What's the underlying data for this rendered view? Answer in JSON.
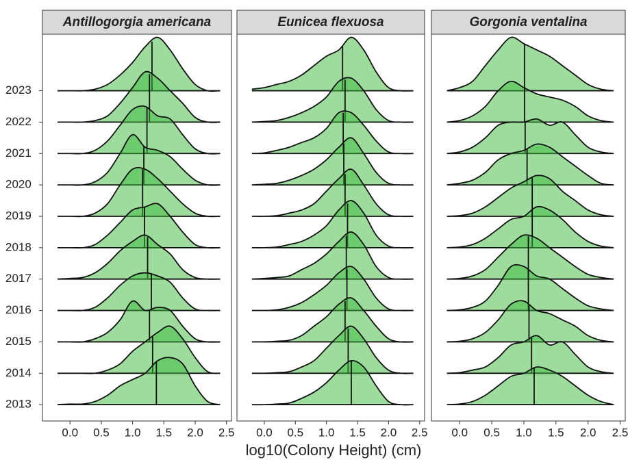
{
  "chart_data": {
    "type": "ridgeline",
    "x_label": "log10(Colony Height) (cm)",
    "categories": [
      "2013",
      "2014",
      "2015",
      "2016",
      "2017",
      "2018",
      "2019",
      "2020",
      "2021",
      "2022",
      "2023"
    ],
    "x": [
      -0.2,
      0,
      0.2,
      0.4,
      0.6,
      0.8,
      1.0,
      1.2,
      1.4,
      1.6,
      1.8,
      2.0,
      2.2,
      2.4
    ],
    "xlim": [
      -0.44,
      2.58
    ],
    "ylim": [
      -0.52,
      11.8
    ],
    "xticks": [
      {
        "value": 0,
        "label": "0.0"
      },
      0.5,
      {
        "value": 1,
        "label": "1.0"
      },
      1.5,
      {
        "value": 2,
        "label": "2.0"
      },
      2.5
    ],
    "fill": "#3cb93c",
    "facets": [
      {
        "title": "Antillogorgia americana",
        "medians": [
          1.38,
          1.32,
          1.27,
          1.3,
          1.24,
          1.19,
          1.16,
          1.18,
          1.23,
          1.27,
          1.31
        ],
        "ridges": [
          [
            0,
            0.02,
            0.02,
            0.1,
            0.3,
            0.6,
            0.8,
            1.0,
            1.4,
            1.5,
            1.3,
            0.6,
            0.1,
            0
          ],
          [
            0,
            0,
            0,
            0,
            0.1,
            0.3,
            0.7,
            1.0,
            1.3,
            1.5,
            1.1,
            0.5,
            0.05,
            0
          ],
          [
            0,
            0,
            0,
            0.1,
            0.3,
            0.7,
            1.3,
            1.0,
            1.1,
            1.0,
            0.5,
            0.1,
            0,
            0
          ],
          [
            0,
            0,
            0,
            0.1,
            0.4,
            0.8,
            1.1,
            1.2,
            1.1,
            0.9,
            0.4,
            0.05,
            0,
            0
          ],
          [
            0,
            0.02,
            0.05,
            0.2,
            0.5,
            0.9,
            1.2,
            1.4,
            1.1,
            0.8,
            0.3,
            0.05,
            0,
            0
          ],
          [
            0,
            0,
            0,
            0.1,
            0.4,
            0.8,
            1.2,
            1.3,
            1.4,
            1.0,
            0.5,
            0.1,
            0,
            0
          ],
          [
            0,
            0,
            0,
            0.1,
            0.4,
            1.0,
            1.5,
            1.5,
            1.2,
            0.8,
            0.4,
            0.1,
            0,
            0
          ],
          [
            0,
            0,
            0,
            0.1,
            0.4,
            1.0,
            1.6,
            1.2,
            1.1,
            0.9,
            0.5,
            0.15,
            0,
            0
          ],
          [
            0,
            0,
            0,
            0.1,
            0.4,
            0.9,
            1.4,
            1.5,
            1.2,
            1.1,
            0.6,
            0.15,
            0,
            0
          ],
          [
            0,
            0,
            0,
            0.05,
            0.2,
            0.6,
            1.1,
            1.6,
            1.4,
            1.0,
            0.6,
            0.15,
            0,
            0
          ],
          [
            0,
            0,
            0,
            0.05,
            0.2,
            0.5,
            0.9,
            1.4,
            1.7,
            1.3,
            0.7,
            0.2,
            0,
            0
          ]
        ]
      },
      {
        "title": "Eunicea flexuosa",
        "medians": [
          1.4,
          1.35,
          1.3,
          1.33,
          1.32,
          1.34,
          1.3,
          1.28,
          1.27,
          1.3,
          1.26
        ],
        "ridges": [
          [
            0,
            0,
            0.02,
            0.05,
            0.2,
            0.4,
            0.7,
            1.1,
            1.4,
            1.2,
            0.6,
            0.1,
            0,
            0
          ],
          [
            0,
            0,
            0.02,
            0.05,
            0.2,
            0.4,
            0.8,
            1.2,
            1.5,
            1.1,
            0.5,
            0.1,
            0,
            0
          ],
          [
            0,
            0,
            0.02,
            0.05,
            0.2,
            0.5,
            0.8,
            1.2,
            1.4,
            1.0,
            0.5,
            0.1,
            0,
            0
          ],
          [
            0,
            0,
            0.02,
            0.1,
            0.25,
            0.5,
            0.8,
            1.2,
            1.4,
            1.0,
            0.4,
            0.05,
            0,
            0
          ],
          [
            0,
            0.02,
            0.05,
            0.1,
            0.3,
            0.5,
            0.8,
            1.2,
            1.5,
            1.1,
            0.4,
            0.05,
            0,
            0
          ],
          [
            0,
            0,
            0.02,
            0.1,
            0.2,
            0.4,
            0.7,
            1.2,
            1.5,
            1.1,
            0.4,
            0.05,
            0,
            0
          ],
          [
            0,
            0,
            0.02,
            0.1,
            0.2,
            0.4,
            0.8,
            1.2,
            1.5,
            1.0,
            0.4,
            0.05,
            0,
            0
          ],
          [
            0,
            0.02,
            0.05,
            0.15,
            0.3,
            0.5,
            0.8,
            1.2,
            1.5,
            1.0,
            0.4,
            0.05,
            0,
            0
          ],
          [
            0,
            0.02,
            0.1,
            0.2,
            0.35,
            0.5,
            0.8,
            1.3,
            1.3,
            0.9,
            0.4,
            0.05,
            0,
            0
          ],
          [
            0,
            0.02,
            0.05,
            0.15,
            0.3,
            0.5,
            0.8,
            1.3,
            1.4,
            1.0,
            0.4,
            0.05,
            0,
            0
          ],
          [
            0.05,
            0.1,
            0.2,
            0.3,
            0.5,
            0.8,
            1.1,
            1.3,
            1.7,
            1.3,
            0.6,
            0.1,
            0,
            0
          ]
        ]
      },
      {
        "title": "Gorgonia ventalina",
        "medians": [
          1.16,
          1.12,
          1.08,
          1.07,
          1.07,
          1.13,
          1.13,
          1.05,
          1.02,
          1.01,
          1.01
        ],
        "ridges": [
          [
            0,
            0.02,
            0.1,
            0.3,
            0.6,
            0.9,
            1.0,
            1.2,
            1.1,
            0.9,
            0.6,
            0.3,
            0.1,
            0
          ],
          [
            0,
            0.02,
            0.1,
            0.2,
            0.5,
            0.9,
            1.0,
            1.2,
            0.9,
            1.0,
            0.6,
            0.2,
            0.05,
            0
          ],
          [
            0,
            0.02,
            0.1,
            0.3,
            0.7,
            1.2,
            1.3,
            1.0,
            0.9,
            0.7,
            0.5,
            0.2,
            0.05,
            0
          ],
          [
            0,
            0.02,
            0.1,
            0.3,
            0.8,
            1.4,
            1.4,
            1.1,
            1.0,
            0.7,
            0.4,
            0.15,
            0.05,
            0
          ],
          [
            0,
            0.02,
            0.1,
            0.3,
            0.7,
            1.1,
            1.4,
            1.3,
            1.0,
            0.7,
            0.4,
            0.15,
            0.05,
            0
          ],
          [
            0,
            0.02,
            0.1,
            0.3,
            0.6,
            0.9,
            1.0,
            1.3,
            1.2,
            0.9,
            0.5,
            0.2,
            0.05,
            0
          ],
          [
            0,
            0.02,
            0.1,
            0.3,
            0.6,
            0.9,
            1.1,
            1.3,
            1.2,
            0.8,
            0.5,
            0.2,
            0.05,
            0
          ],
          [
            0,
            0.05,
            0.15,
            0.4,
            0.8,
            1.0,
            1.1,
            1.3,
            1.2,
            0.9,
            0.6,
            0.3,
            0.05,
            0
          ],
          [
            0,
            0.05,
            0.2,
            0.5,
            0.9,
            1.0,
            1.0,
            1.1,
            0.9,
            1.0,
            0.6,
            0.2,
            0.05,
            0
          ],
          [
            0,
            0.05,
            0.2,
            0.5,
            1.0,
            1.3,
            1.1,
            0.9,
            0.8,
            0.7,
            0.5,
            0.2,
            0.05,
            0
          ],
          [
            0,
            0.1,
            0.3,
            0.8,
            1.3,
            1.7,
            1.5,
            1.3,
            1.1,
            0.8,
            0.5,
            0.2,
            0.05,
            0
          ]
        ]
      }
    ]
  }
}
